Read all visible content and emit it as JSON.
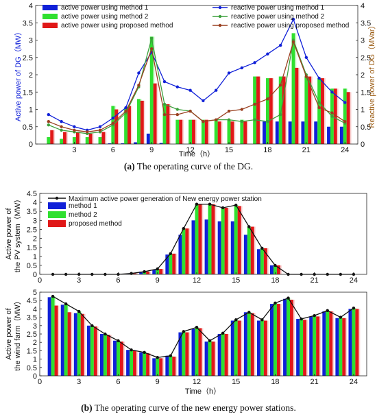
{
  "chart_data": [
    {
      "type": "bar",
      "subplot": "a",
      "caption_label": "(a)",
      "caption_text": " The operating curve of the DG.",
      "xlabel": "Time（h）",
      "ylabel": "Active power of DG（MW）",
      "ylabel_right": "Reactive power of DG（MVar）",
      "xlim": [
        0,
        25
      ],
      "xticks": [
        "3",
        "6",
        "9",
        "12",
        "15",
        "18",
        "21",
        "24"
      ],
      "ylim": [
        0,
        4
      ],
      "yticks": [
        "0",
        "0.5",
        "1",
        "1.5",
        "2",
        "2.5",
        "3",
        "3.5",
        "4"
      ],
      "ylim_right": [
        0,
        4
      ],
      "yticks_right": [
        "0",
        "0.5",
        "1",
        "1.5",
        "2",
        "2.5",
        "3",
        "3.5",
        "4"
      ],
      "x": [
        1,
        2,
        3,
        4,
        5,
        6,
        7,
        8,
        9,
        10,
        11,
        12,
        13,
        14,
        15,
        16,
        17,
        18,
        19,
        20,
        21,
        22,
        23,
        24
      ],
      "legend_position": "top",
      "series": [
        {
          "name": "active power using method 1",
          "kind": "bar",
          "color": "#1020d8",
          "values": [
            0,
            0,
            0,
            0,
            0,
            0.02,
            0.02,
            0.05,
            0.3,
            0.03,
            0,
            0,
            0,
            0,
            0,
            0,
            0,
            0.65,
            0.65,
            0.65,
            0.65,
            0.65,
            0.5,
            0.5
          ]
        },
        {
          "name": "active power using method 2",
          "kind": "bar",
          "color": "#30e030",
          "values": [
            0.2,
            0.15,
            0.2,
            0.2,
            0.2,
            1.1,
            1.05,
            1.3,
            3.1,
            1.15,
            0.7,
            0.7,
            0.7,
            0.7,
            0.7,
            0.7,
            1.95,
            1.9,
            1.95,
            3.2,
            1.95,
            1.9,
            1.6,
            1.6
          ]
        },
        {
          "name": "active power using proposed method",
          "kind": "bar",
          "color": "#e01818",
          "values": [
            0.4,
            0.35,
            0.35,
            0.3,
            0.35,
            1.0,
            1.1,
            1.25,
            1.75,
            1.15,
            0.7,
            0.7,
            0.7,
            0.65,
            0.65,
            0.65,
            1.95,
            1.9,
            1.95,
            2.2,
            1.95,
            1.9,
            1.6,
            1.5
          ]
        },
        {
          "name": "reactive power using method 1",
          "kind": "line",
          "color": "#1020d8",
          "axis": "left",
          "values": [
            0.85,
            0.65,
            0.5,
            0.4,
            0.5,
            0.75,
            1.05,
            2.05,
            2.65,
            1.8,
            1.65,
            1.55,
            1.25,
            1.55,
            2.05,
            2.2,
            2.35,
            2.6,
            2.85,
            3.6,
            2.5,
            1.9,
            1.5,
            1.2
          ]
        },
        {
          "name": "reactive power using method 2",
          "kind": "line",
          "color": "#3ca03c",
          "axis": "right",
          "values": [
            0.55,
            0.4,
            0.35,
            0.3,
            0.35,
            0.55,
            0.9,
            1.65,
            3.05,
            1.15,
            1.0,
            0.95,
            0.65,
            0.7,
            0.7,
            0.65,
            0.7,
            0.65,
            0.85,
            3.0,
            2.0,
            1.2,
            0.8,
            0.6
          ]
        },
        {
          "name": "reactive power using proposed method",
          "kind": "line",
          "color": "#9a4020",
          "axis": "right",
          "values": [
            0.65,
            0.5,
            0.4,
            0.35,
            0.4,
            0.6,
            0.95,
            1.7,
            2.75,
            0.85,
            0.85,
            0.95,
            0.65,
            0.7,
            0.95,
            1.0,
            1.15,
            1.3,
            1.7,
            2.95,
            1.95,
            1.05,
            0.9,
            0.65
          ]
        }
      ]
    },
    {
      "type": "bar",
      "subplot": "b-top",
      "xlim": [
        0,
        25
      ],
      "xticks": [
        "0",
        "3",
        "6",
        "9",
        "12",
        "15",
        "18",
        "21",
        "24"
      ],
      "ylabel": "Active power of the PV system（MW）",
      "ylabel_line1": "Active power of",
      "ylabel_line2": "the PV system（MW）",
      "ylim": [
        0,
        4.5
      ],
      "yticks": [
        "0",
        "0.5",
        "1",
        "1.5",
        "2",
        "2.5",
        "3",
        "3.5",
        "4",
        "4.5"
      ],
      "x": [
        1,
        2,
        3,
        4,
        5,
        6,
        7,
        8,
        9,
        10,
        11,
        12,
        13,
        14,
        15,
        16,
        17,
        18,
        19,
        20,
        21,
        22,
        23,
        24
      ],
      "legend_position": "top-left",
      "series": [
        {
          "name": "Maximum active power generation of New energy power station",
          "kind": "line",
          "color": "#111111",
          "values": [
            0,
            0,
            0,
            0,
            0,
            0,
            0.05,
            0.15,
            0.3,
            1.15,
            2.55,
            3.9,
            3.9,
            3.7,
            3.85,
            2.65,
            1.45,
            0.5,
            0,
            0,
            0,
            0,
            0,
            0
          ]
        },
        {
          "name": "method 1",
          "kind": "bar",
          "color": "#1020d8",
          "values": [
            0,
            0,
            0,
            0,
            0,
            0,
            0.05,
            0.15,
            0.25,
            1.1,
            2.2,
            3.0,
            3.05,
            2.95,
            2.95,
            2.2,
            1.4,
            0.5,
            0,
            0,
            0,
            0,
            0,
            0
          ]
        },
        {
          "name": "method 2",
          "kind": "bar",
          "color": "#30e030",
          "values": [
            0,
            0,
            0,
            0,
            0,
            0,
            0.05,
            0.15,
            0.3,
            1.15,
            2.55,
            3.9,
            3.9,
            3.7,
            3.85,
            2.65,
            1.45,
            0.5,
            0,
            0,
            0,
            0,
            0,
            0
          ]
        },
        {
          "name": "proposed method",
          "kind": "bar",
          "color": "#e01818",
          "values": [
            0,
            0,
            0,
            0,
            0,
            0,
            0.05,
            0.15,
            0.3,
            1.15,
            2.55,
            3.9,
            3.9,
            3.7,
            3.8,
            2.65,
            1.45,
            0.5,
            0,
            0,
            0,
            0,
            0,
            0
          ]
        }
      ]
    },
    {
      "type": "bar",
      "subplot": "b-bottom",
      "caption_label": "(b)",
      "caption_text": " The operating curve of the new energy power stations.",
      "xlabel": "Time（h）",
      "xlim": [
        0,
        25
      ],
      "xticks": [
        "0",
        "3",
        "6",
        "9",
        "12",
        "15",
        "18",
        "21",
        "24"
      ],
      "ylabel": "Active power of the wind farm（MW）",
      "ylabel_line1": "Active power of",
      "ylabel_line2": "the wind farm（MW）",
      "ylim": [
        0,
        5
      ],
      "yticks": [
        "0",
        "0.5",
        "1",
        "1.5",
        "2",
        "2.5",
        "3",
        "3.5",
        "4",
        "4.5",
        "5"
      ],
      "x": [
        1,
        2,
        3,
        4,
        5,
        6,
        7,
        8,
        9,
        10,
        11,
        12,
        13,
        14,
        15,
        16,
        17,
        18,
        19,
        20,
        21,
        22,
        23,
        24
      ],
      "series": [
        {
          "name": "maximum",
          "kind": "line",
          "color": "#111111",
          "values": [
            4.75,
            4.3,
            3.85,
            3.0,
            2.5,
            2.1,
            1.55,
            1.4,
            1.1,
            1.2,
            2.65,
            2.9,
            2.1,
            2.55,
            3.35,
            3.8,
            3.35,
            4.35,
            4.65,
            3.4,
            3.6,
            3.9,
            3.5,
            4.05
          ]
        },
        {
          "name": "method 1",
          "kind": "bar",
          "color": "#1020d8",
          "values": [
            4.7,
            4.25,
            3.75,
            3.0,
            2.5,
            2.1,
            1.55,
            1.4,
            1.05,
            1.2,
            2.6,
            2.8,
            2.05,
            2.5,
            3.3,
            3.8,
            3.3,
            4.3,
            4.6,
            3.4,
            3.55,
            3.85,
            3.45,
            4.0
          ]
        },
        {
          "name": "method 2",
          "kind": "bar",
          "color": "#30e030",
          "values": [
            4.75,
            4.3,
            3.85,
            3.0,
            2.5,
            2.1,
            1.55,
            1.4,
            1.1,
            1.2,
            2.65,
            2.9,
            2.1,
            2.55,
            3.35,
            3.8,
            3.35,
            4.35,
            4.65,
            3.4,
            3.6,
            3.9,
            3.5,
            4.05
          ]
        },
        {
          "name": "proposed method",
          "kind": "bar",
          "color": "#e01818",
          "values": [
            4.2,
            3.8,
            3.7,
            2.95,
            2.45,
            2.05,
            1.5,
            1.35,
            1.05,
            1.15,
            2.6,
            2.85,
            2.05,
            2.5,
            3.3,
            3.75,
            3.3,
            4.3,
            4.55,
            3.35,
            3.55,
            3.85,
            3.45,
            4.0
          ]
        }
      ]
    }
  ]
}
